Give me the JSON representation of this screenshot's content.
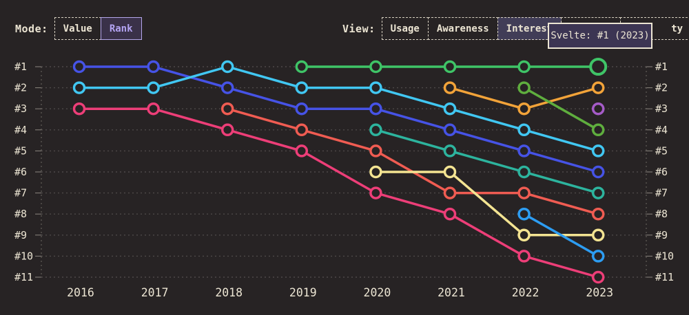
{
  "page": {
    "background": "#272324",
    "text_color": "#ece5d3"
  },
  "mode": {
    "label": "Mode:",
    "buttons": [
      {
        "label": "Value",
        "selected": false
      },
      {
        "label": "Rank",
        "selected": true
      }
    ]
  },
  "view": {
    "label": "View:",
    "buttons": [
      {
        "label": "Usage",
        "selected": false
      },
      {
        "label": "Awareness",
        "selected": false
      },
      {
        "label": "Interest",
        "selected": true
      },
      {
        "label": "",
        "selected": false,
        "hidden_by_tooltip": true
      },
      {
        "label": "ty",
        "selected": false,
        "partially_hidden_by_tooltip": true
      }
    ]
  },
  "tooltip": {
    "text": "Svelte: #1 (2023)",
    "background": "#3c3553",
    "border_color": "#ece5d3"
  },
  "chart_data": {
    "type": "line",
    "subtype": "bump-rank-chart",
    "x": [
      2016,
      2017,
      2018,
      2019,
      2020,
      2021,
      2022,
      2023
    ],
    "rank_labels": [
      "#1",
      "#2",
      "#3",
      "#4",
      "#5",
      "#6",
      "#7",
      "#8",
      "#9",
      "#10",
      "#11"
    ],
    "ylim": [
      1,
      11
    ],
    "grid": true,
    "grid_color": "#4e4949",
    "axis_color": "#6e6862",
    "tick_color": "#8d8780",
    "label_color": "#ece5d3",
    "series": [
      {
        "name": "blue",
        "color": "#4653e6",
        "ranks": [
          1,
          1,
          2,
          3,
          3,
          4,
          5,
          6
        ]
      },
      {
        "name": "cyan",
        "color": "#41c7f2",
        "ranks": [
          2,
          2,
          1,
          2,
          2,
          3,
          4,
          5
        ]
      },
      {
        "name": "pink",
        "color": "#ed3e78",
        "ranks": [
          3,
          3,
          4,
          5,
          7,
          8,
          10,
          11
        ]
      },
      {
        "name": "coral",
        "color": "#f05c52",
        "ranks": [
          null,
          null,
          3,
          4,
          5,
          7,
          7,
          8
        ]
      },
      {
        "name": "svelte-green",
        "color": "#3fc467",
        "ranks": [
          null,
          null,
          null,
          1,
          1,
          1,
          1,
          1
        ]
      },
      {
        "name": "teal",
        "color": "#2db49e",
        "ranks": [
          null,
          null,
          null,
          null,
          4,
          5,
          6,
          7
        ]
      },
      {
        "name": "yellow",
        "color": "#f4e492",
        "ranks": [
          null,
          null,
          null,
          null,
          6,
          6,
          9,
          9
        ]
      },
      {
        "name": "orange",
        "color": "#f2a339",
        "ranks": [
          null,
          null,
          null,
          null,
          null,
          2,
          3,
          2
        ]
      },
      {
        "name": "apple-green",
        "color": "#5fae3e",
        "ranks": [
          null,
          null,
          null,
          null,
          null,
          null,
          2,
          4
        ]
      },
      {
        "name": "dodger-blue",
        "color": "#2d9df2",
        "ranks": [
          null,
          null,
          null,
          null,
          null,
          null,
          8,
          10
        ]
      },
      {
        "name": "purple",
        "color": "#a55bc8",
        "ranks": [
          null,
          null,
          null,
          null,
          null,
          null,
          null,
          3
        ]
      }
    ],
    "highlight": {
      "series": "svelte-green",
      "year": 2023,
      "rank": 1,
      "tooltip_text": "Svelte: #1 (2023)"
    }
  }
}
